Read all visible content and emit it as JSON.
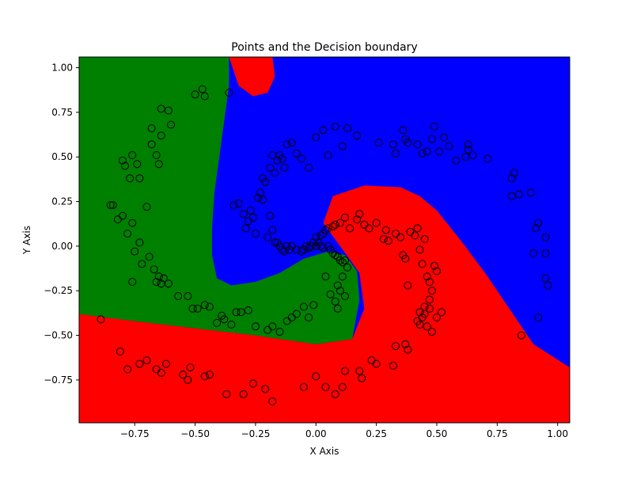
{
  "chart_data": {
    "type": "scatter",
    "title": "Points and the Decision boundary",
    "xlabel": "X Axis",
    "ylabel": "Y Axis",
    "xlim": [
      -0.98,
      1.05
    ],
    "ylim": [
      -0.99,
      1.06
    ],
    "x_ticks": [
      -0.75,
      -0.5,
      -0.25,
      0.0,
      0.25,
      0.5,
      0.75,
      1.0
    ],
    "x_tick_labels": [
      "−0.75",
      "−0.50",
      "−0.25",
      "0.00",
      "0.25",
      "0.50",
      "0.75",
      "1.00"
    ],
    "y_ticks": [
      -0.75,
      -0.5,
      -0.25,
      0.0,
      0.25,
      0.5,
      0.75,
      1.0
    ],
    "y_tick_labels": [
      "−0.75",
      "−0.50",
      "−0.25",
      "0.00",
      "0.25",
      "0.50",
      "0.75",
      "1.00"
    ],
    "grid": false,
    "legend": "none",
    "colors": {
      "region_blue": "#0000ff",
      "region_green": "#008000",
      "region_red": "#ff0000",
      "point_edge": "#000000"
    },
    "decision_regions": [
      {
        "class": "red",
        "color": "#ff0000",
        "polygon": [
          [
            -0.98,
            -0.38
          ],
          [
            -0.75,
            -0.42
          ],
          [
            -0.5,
            -0.46
          ],
          [
            -0.25,
            -0.5
          ],
          [
            0.0,
            -0.55
          ],
          [
            0.15,
            -0.52
          ],
          [
            0.2,
            -0.35
          ],
          [
            0.18,
            -0.15
          ],
          [
            0.1,
            0.0
          ],
          [
            0.03,
            0.13
          ],
          [
            0.07,
            0.28
          ],
          [
            0.2,
            0.34
          ],
          [
            0.35,
            0.33
          ],
          [
            0.43,
            0.28
          ],
          [
            0.5,
            0.2
          ],
          [
            0.6,
            0.03
          ],
          [
            0.7,
            -0.15
          ],
          [
            0.8,
            -0.35
          ],
          [
            0.9,
            -0.55
          ],
          [
            1.05,
            -0.68
          ],
          [
            1.05,
            -0.99
          ],
          [
            -0.98,
            -0.99
          ]
        ]
      },
      {
        "class": "green",
        "color": "#008000",
        "polygon": [
          [
            -0.98,
            1.06
          ],
          [
            -0.36,
            1.06
          ],
          [
            -0.36,
            0.9
          ],
          [
            -0.38,
            0.7
          ],
          [
            -0.4,
            0.5
          ],
          [
            -0.42,
            0.3
          ],
          [
            -0.43,
            0.1
          ],
          [
            -0.43,
            -0.05
          ],
          [
            -0.41,
            -0.18
          ],
          [
            -0.35,
            -0.22
          ],
          [
            -0.25,
            -0.2
          ],
          [
            -0.15,
            -0.15
          ],
          [
            -0.05,
            -0.07
          ],
          [
            0.05,
            -0.03
          ],
          [
            0.12,
            -0.05
          ],
          [
            0.17,
            -0.14
          ],
          [
            0.18,
            -0.3
          ],
          [
            0.15,
            -0.52
          ],
          [
            0.0,
            -0.55
          ],
          [
            -0.25,
            -0.5
          ],
          [
            -0.5,
            -0.46
          ],
          [
            -0.75,
            -0.42
          ],
          [
            -0.98,
            -0.38
          ]
        ]
      },
      {
        "class": "red",
        "color": "#ff0000",
        "polygon": [
          [
            -0.36,
            1.06
          ],
          [
            -0.18,
            1.06
          ],
          [
            -0.17,
            0.95
          ],
          [
            -0.2,
            0.86
          ],
          [
            -0.26,
            0.84
          ],
          [
            -0.32,
            0.9
          ]
        ]
      }
    ],
    "points": [
      [
        -0.89,
        -0.41
      ],
      [
        -0.81,
        -0.59
      ],
      [
        -0.78,
        -0.69
      ],
      [
        -0.73,
        -0.66
      ],
      [
        -0.7,
        -0.64
      ],
      [
        -0.66,
        -0.69
      ],
      [
        -0.64,
        -0.71
      ],
      [
        -0.62,
        -0.66
      ],
      [
        -0.55,
        -0.72
      ],
      [
        -0.53,
        -0.75
      ],
      [
        -0.52,
        -0.68
      ],
      [
        -0.46,
        -0.73
      ],
      [
        -0.44,
        -0.72
      ],
      [
        -0.37,
        -0.83
      ],
      [
        -0.3,
        -0.83
      ],
      [
        -0.26,
        -0.77
      ],
      [
        -0.21,
        -0.8
      ],
      [
        -0.18,
        -0.87
      ],
      [
        -0.05,
        -0.79
      ],
      [
        0.0,
        -0.73
      ],
      [
        0.04,
        -0.79
      ],
      [
        0.08,
        -0.83
      ],
      [
        0.11,
        -0.79
      ],
      [
        0.12,
        -0.7
      ],
      [
        0.18,
        -0.7
      ],
      [
        0.19,
        -0.74
      ],
      [
        0.23,
        -0.64
      ],
      [
        0.25,
        -0.66
      ],
      [
        0.32,
        -0.67
      ],
      [
        0.33,
        -0.56
      ],
      [
        0.37,
        -0.55
      ],
      [
        0.38,
        -0.58
      ],
      [
        -0.84,
        0.23
      ],
      [
        -0.82,
        0.15
      ],
      [
        -0.8,
        0.17
      ],
      [
        -0.78,
        0.07
      ],
      [
        -0.76,
        0.13
      ],
      [
        -0.75,
        -0.03
      ],
      [
        -0.73,
        0.02
      ],
      [
        -0.72,
        -0.1
      ],
      [
        -0.69,
        -0.06
      ],
      [
        -0.67,
        -0.13
      ],
      [
        -0.65,
        -0.17
      ],
      [
        -0.64,
        -0.21
      ],
      [
        -0.61,
        -0.21
      ],
      [
        -0.63,
        -0.18
      ],
      [
        -0.66,
        -0.2
      ],
      [
        -0.76,
        -0.2
      ],
      [
        -0.57,
        -0.28
      ],
      [
        -0.53,
        -0.28
      ],
      [
        -0.49,
        -0.35
      ],
      [
        -0.51,
        -0.35
      ],
      [
        -0.46,
        -0.33
      ],
      [
        -0.44,
        -0.34
      ],
      [
        -0.41,
        -0.43
      ],
      [
        -0.39,
        -0.39
      ],
      [
        -0.38,
        -0.41
      ],
      [
        -0.35,
        -0.44
      ],
      [
        -0.33,
        -0.37
      ],
      [
        -0.31,
        -0.37
      ],
      [
        -0.28,
        -0.36
      ],
      [
        -0.25,
        -0.45
      ],
      [
        -0.2,
        -0.47
      ],
      [
        -0.18,
        -0.45
      ],
      [
        -0.15,
        -0.48
      ],
      [
        -0.12,
        -0.42
      ],
      [
        -0.1,
        -0.4
      ],
      [
        -0.08,
        -0.38
      ],
      [
        -0.05,
        -0.34
      ],
      [
        -0.03,
        -0.4
      ],
      [
        -0.01,
        -0.33
      ],
      [
        -0.85,
        0.23
      ],
      [
        -0.8,
        0.48
      ],
      [
        -0.76,
        0.51
      ],
      [
        -0.79,
        0.45
      ],
      [
        -0.77,
        0.38
      ],
      [
        -0.74,
        0.46
      ],
      [
        -0.73,
        0.38
      ],
      [
        -0.7,
        0.22
      ],
      [
        -0.68,
        0.57
      ],
      [
        -0.68,
        0.66
      ],
      [
        -0.66,
        0.51
      ],
      [
        -0.65,
        0.46
      ],
      [
        -0.64,
        0.62
      ],
      [
        -0.64,
        0.77
      ],
      [
        -0.61,
        0.76
      ],
      [
        -0.6,
        0.68
      ],
      [
        -0.5,
        0.85
      ],
      [
        -0.47,
        0.88
      ],
      [
        -0.46,
        0.84
      ],
      [
        -0.36,
        0.86
      ],
      [
        -0.34,
        0.23
      ],
      [
        -0.32,
        0.24
      ],
      [
        -0.3,
        0.18
      ],
      [
        -0.29,
        0.1
      ],
      [
        -0.28,
        0.14
      ],
      [
        -0.27,
        0.2
      ],
      [
        -0.26,
        0.16
      ],
      [
        -0.25,
        0.07
      ],
      [
        -0.24,
        0.27
      ],
      [
        -0.23,
        0.3
      ],
      [
        -0.22,
        0.26
      ],
      [
        -0.21,
        0.36
      ],
      [
        -0.2,
        0.05
      ],
      [
        -0.19,
        0.17
      ],
      [
        -0.18,
        0.09
      ],
      [
        -0.17,
        0.02
      ],
      [
        -0.16,
        0.02
      ],
      [
        -0.15,
        0.0
      ],
      [
        -0.14,
        -0.02
      ],
      [
        -0.13,
        -0.03
      ],
      [
        -0.12,
        0.0
      ],
      [
        -0.11,
        -0.02
      ],
      [
        -0.1,
        0.0
      ],
      [
        -0.08,
        -0.02
      ],
      [
        -0.06,
        -0.03
      ],
      [
        -0.05,
        -0.02
      ],
      [
        -0.04,
        0.0
      ],
      [
        -0.03,
        -0.01
      ],
      [
        -0.02,
        0.0
      ],
      [
        -0.01,
        0.02
      ],
      [
        -0.22,
        0.38
      ],
      [
        -0.19,
        0.44
      ],
      [
        -0.18,
        0.51
      ],
      [
        -0.17,
        0.41
      ],
      [
        -0.16,
        0.48
      ],
      [
        -0.15,
        0.51
      ],
      [
        -0.14,
        0.49
      ],
      [
        -0.13,
        0.44
      ],
      [
        -0.12,
        0.57
      ],
      [
        -0.1,
        0.58
      ],
      [
        -0.08,
        0.52
      ],
      [
        -0.06,
        0.49
      ],
      [
        -0.03,
        0.44
      ],
      [
        0.0,
        0.61
      ],
      [
        0.03,
        0.65
      ],
      [
        0.05,
        0.51
      ],
      [
        0.08,
        0.67
      ],
      [
        0.11,
        0.56
      ],
      [
        0.13,
        0.66
      ],
      [
        0.17,
        0.62
      ],
      [
        0.26,
        0.58
      ],
      [
        0.32,
        0.57
      ],
      [
        0.33,
        0.52
      ],
      [
        0.36,
        0.65
      ],
      [
        0.37,
        0.6
      ],
      [
        0.38,
        0.58
      ],
      [
        0.42,
        0.57
      ],
      [
        0.44,
        0.52
      ],
      [
        0.46,
        0.53
      ],
      [
        0.48,
        0.6
      ],
      [
        0.49,
        0.67
      ],
      [
        0.51,
        0.53
      ],
      [
        0.53,
        0.61
      ],
      [
        0.55,
        0.56
      ],
      [
        0.58,
        0.48
      ],
      [
        0.62,
        0.5
      ],
      [
        0.63,
        0.54
      ],
      [
        0.63,
        0.57
      ],
      [
        0.65,
        0.51
      ],
      [
        0.71,
        0.49
      ],
      [
        0.81,
        0.38
      ],
      [
        0.82,
        0.41
      ],
      [
        0.84,
        0.29
      ],
      [
        0.81,
        0.28
      ],
      [
        0.89,
        0.3
      ],
      [
        0.91,
        0.1
      ],
      [
        0.92,
        0.13
      ],
      [
        0.95,
        0.05
      ],
      [
        0.9,
        -0.04
      ],
      [
        0.95,
        -0.04
      ],
      [
        0.95,
        -0.18
      ],
      [
        0.96,
        -0.22
      ],
      [
        0.92,
        -0.4
      ],
      [
        0.85,
        -0.5
      ],
      [
        0.0,
        0.05
      ],
      [
        0.01,
        0.02
      ],
      [
        0.02,
        0.06
      ],
      [
        0.03,
        0.07
      ],
      [
        0.04,
        0.09
      ],
      [
        0.05,
        0.1
      ],
      [
        0.07,
        0.11
      ],
      [
        0.08,
        0.12
      ],
      [
        0.1,
        0.13
      ],
      [
        0.12,
        0.16
      ],
      [
        0.14,
        0.1
      ],
      [
        0.17,
        0.15
      ],
      [
        0.18,
        0.18
      ],
      [
        0.2,
        0.12
      ],
      [
        0.22,
        0.1
      ],
      [
        0.25,
        0.13
      ],
      [
        0.28,
        0.04
      ],
      [
        0.29,
        0.09
      ],
      [
        0.3,
        0.03
      ],
      [
        0.33,
        0.07
      ],
      [
        0.35,
        0.05
      ],
      [
        0.36,
        -0.05
      ],
      [
        0.37,
        -0.07
      ],
      [
        0.38,
        -0.22
      ],
      [
        0.39,
        0.08
      ],
      [
        0.41,
        0.06
      ],
      [
        0.42,
        0.1
      ],
      [
        0.43,
        -0.02
      ],
      [
        0.44,
        -0.1
      ],
      [
        0.45,
        0.04
      ],
      [
        0.46,
        -0.17
      ],
      [
        0.47,
        -0.2
      ],
      [
        0.48,
        -0.25
      ],
      [
        0.49,
        -0.11
      ],
      [
        0.5,
        -0.14
      ],
      [
        0.47,
        -0.3
      ],
      [
        0.45,
        -0.34
      ],
      [
        0.44,
        -0.4
      ],
      [
        0.43,
        -0.37
      ],
      [
        0.42,
        -0.42
      ],
      [
        0.46,
        -0.45
      ],
      [
        0.48,
        -0.48
      ],
      [
        0.5,
        -0.4
      ],
      [
        0.52,
        -0.37
      ],
      [
        0.45,
        -0.38
      ],
      [
        0.47,
        -0.35
      ],
      [
        0.43,
        -0.44
      ],
      [
        0.0,
        0.0
      ],
      [
        0.02,
        0.0
      ],
      [
        0.03,
        -0.01
      ],
      [
        0.05,
        0.0
      ],
      [
        0.06,
        -0.02
      ],
      [
        0.07,
        -0.04
      ],
      [
        0.08,
        -0.05
      ],
      [
        0.09,
        -0.06
      ],
      [
        0.1,
        -0.08
      ],
      [
        0.11,
        -0.09
      ],
      [
        0.12,
        -0.08
      ],
      [
        0.13,
        -0.12
      ],
      [
        0.11,
        -0.17
      ],
      [
        0.09,
        -0.22
      ],
      [
        0.1,
        -0.25
      ],
      [
        0.12,
        -0.28
      ],
      [
        0.08,
        -0.31
      ],
      [
        0.09,
        -0.35
      ],
      [
        0.06,
        -0.27
      ],
      [
        0.04,
        -0.17
      ]
    ]
  }
}
